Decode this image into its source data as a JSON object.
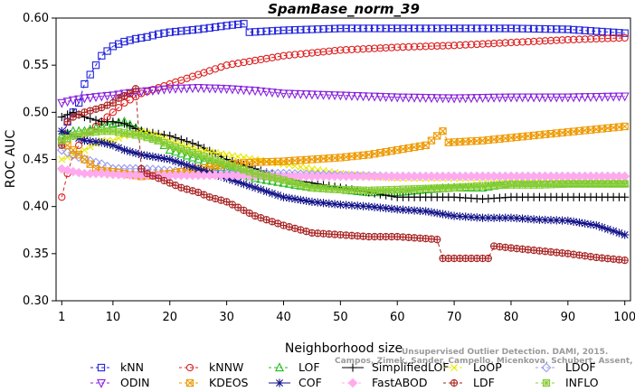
{
  "chart_data": {
    "type": "line",
    "title": "SpamBase_norm_39",
    "xlabel": "Neighborhood size",
    "ylabel": "ROC AUC",
    "xlim": [
      0,
      101
    ],
    "ylim": [
      0.3,
      0.6
    ],
    "xticks": [
      1,
      10,
      20,
      30,
      40,
      50,
      60,
      70,
      80,
      90,
      100
    ],
    "yticks": [
      0.3,
      0.35,
      0.4,
      0.45,
      0.5,
      0.55,
      0.6
    ],
    "grid": false,
    "legend_position": "bottom",
    "series": [
      {
        "name": "kNN",
        "color": "#2222dd",
        "marker": "square",
        "dash": "4,3",
        "points": [
          [
            1,
            0.47
          ],
          [
            2,
            0.49
          ],
          [
            3,
            0.5
          ],
          [
            4,
            0.51
          ],
          [
            5,
            0.53
          ],
          [
            6,
            0.54
          ],
          [
            7,
            0.55
          ],
          [
            8,
            0.56
          ],
          [
            9,
            0.565
          ],
          [
            10,
            0.57
          ],
          [
            12,
            0.575
          ],
          [
            14,
            0.578
          ],
          [
            16,
            0.58
          ],
          [
            18,
            0.583
          ],
          [
            20,
            0.585
          ],
          [
            25,
            0.588
          ],
          [
            30,
            0.592
          ],
          [
            33,
            0.594
          ],
          [
            34,
            0.585
          ],
          [
            40,
            0.587
          ],
          [
            50,
            0.589
          ],
          [
            60,
            0.589
          ],
          [
            70,
            0.589
          ],
          [
            80,
            0.589
          ],
          [
            90,
            0.588
          ],
          [
            95,
            0.586
          ],
          [
            100,
            0.584
          ]
        ]
      },
      {
        "name": "kNNW",
        "color": "#dd2222",
        "marker": "circle",
        "dash": "4,3",
        "points": [
          [
            1,
            0.41
          ],
          [
            2,
            0.435
          ],
          [
            3,
            0.455
          ],
          [
            4,
            0.465
          ],
          [
            5,
            0.475
          ],
          [
            6,
            0.48
          ],
          [
            7,
            0.485
          ],
          [
            8,
            0.49
          ],
          [
            9,
            0.495
          ],
          [
            10,
            0.5
          ],
          [
            12,
            0.51
          ],
          [
            15,
            0.52
          ],
          [
            20,
            0.53
          ],
          [
            25,
            0.54
          ],
          [
            30,
            0.55
          ],
          [
            35,
            0.555
          ],
          [
            40,
            0.56
          ],
          [
            50,
            0.566
          ],
          [
            60,
            0.569
          ],
          [
            70,
            0.571
          ],
          [
            80,
            0.574
          ],
          [
            90,
            0.577
          ],
          [
            100,
            0.579
          ]
        ]
      },
      {
        "name": "LOF",
        "color": "#22bb22",
        "marker": "triangle-up",
        "dash": "4,3",
        "points": [
          [
            1,
            0.475
          ],
          [
            3,
            0.48
          ],
          [
            5,
            0.48
          ],
          [
            8,
            0.485
          ],
          [
            10,
            0.488
          ],
          [
            12,
            0.49
          ],
          [
            15,
            0.48
          ],
          [
            18,
            0.47
          ],
          [
            20,
            0.46
          ],
          [
            25,
            0.45
          ],
          [
            30,
            0.44
          ],
          [
            35,
            0.43
          ],
          [
            40,
            0.425
          ],
          [
            45,
            0.42
          ],
          [
            50,
            0.418
          ],
          [
            55,
            0.415
          ],
          [
            60,
            0.415
          ],
          [
            65,
            0.418
          ],
          [
            70,
            0.42
          ],
          [
            75,
            0.42
          ],
          [
            80,
            0.425
          ],
          [
            90,
            0.425
          ],
          [
            100,
            0.425
          ]
        ]
      },
      {
        "name": "SimplifiedLOF",
        "color": "#000000",
        "marker": "plus",
        "dash": "",
        "points": [
          [
            1,
            0.495
          ],
          [
            3,
            0.5
          ],
          [
            5,
            0.495
          ],
          [
            8,
            0.49
          ],
          [
            10,
            0.49
          ],
          [
            12,
            0.488
          ],
          [
            15,
            0.48
          ],
          [
            20,
            0.475
          ],
          [
            25,
            0.465
          ],
          [
            30,
            0.45
          ],
          [
            35,
            0.44
          ],
          [
            40,
            0.43
          ],
          [
            45,
            0.425
          ],
          [
            50,
            0.42
          ],
          [
            55,
            0.415
          ],
          [
            60,
            0.41
          ],
          [
            65,
            0.41
          ],
          [
            70,
            0.41
          ],
          [
            75,
            0.408
          ],
          [
            80,
            0.41
          ],
          [
            90,
            0.41
          ],
          [
            100,
            0.41
          ]
        ]
      },
      {
        "name": "LoOP",
        "color": "#e8e800",
        "marker": "x",
        "dash": "4,3",
        "points": [
          [
            1,
            0.45
          ],
          [
            3,
            0.455
          ],
          [
            5,
            0.46
          ],
          [
            8,
            0.47
          ],
          [
            10,
            0.47
          ],
          [
            12,
            0.475
          ],
          [
            15,
            0.48
          ],
          [
            18,
            0.475
          ],
          [
            20,
            0.47
          ],
          [
            25,
            0.46
          ],
          [
            30,
            0.455
          ],
          [
            35,
            0.45
          ],
          [
            40,
            0.445
          ],
          [
            45,
            0.44
          ],
          [
            50,
            0.435
          ],
          [
            55,
            0.432
          ],
          [
            60,
            0.43
          ],
          [
            65,
            0.43
          ],
          [
            70,
            0.43
          ],
          [
            80,
            0.43
          ],
          [
            90,
            0.43
          ],
          [
            100,
            0.43
          ]
        ]
      },
      {
        "name": "LDOF",
        "color": "#9999ee",
        "marker": "diamond",
        "dash": "4,3",
        "points": [
          [
            1,
            0.46
          ],
          [
            3,
            0.455
          ],
          [
            5,
            0.45
          ],
          [
            8,
            0.445
          ],
          [
            10,
            0.44
          ],
          [
            12,
            0.44
          ],
          [
            15,
            0.44
          ],
          [
            20,
            0.438
          ],
          [
            25,
            0.435
          ],
          [
            30,
            0.435
          ],
          [
            40,
            0.435
          ],
          [
            50,
            0.433
          ],
          [
            60,
            0.432
          ],
          [
            70,
            0.432
          ],
          [
            80,
            0.432
          ],
          [
            90,
            0.432
          ],
          [
            100,
            0.432
          ]
        ]
      },
      {
        "name": "ODIN",
        "color": "#8822dd",
        "marker": "triangle-down",
        "dash": "4,3",
        "points": [
          [
            1,
            0.51
          ],
          [
            3,
            0.513
          ],
          [
            5,
            0.515
          ],
          [
            8,
            0.517
          ],
          [
            10,
            0.518
          ],
          [
            12,
            0.52
          ],
          [
            15,
            0.522
          ],
          [
            20,
            0.525
          ],
          [
            25,
            0.526
          ],
          [
            30,
            0.525
          ],
          [
            35,
            0.523
          ],
          [
            40,
            0.52
          ],
          [
            50,
            0.518
          ],
          [
            60,
            0.516
          ],
          [
            70,
            0.515
          ],
          [
            80,
            0.516
          ],
          [
            90,
            0.516
          ],
          [
            100,
            0.517
          ]
        ]
      },
      {
        "name": "KDEOS",
        "color": "#ee9900",
        "marker": "square-x",
        "dash": "4,3",
        "points": [
          [
            1,
            0.47
          ],
          [
            2,
            0.465
          ],
          [
            3,
            0.46
          ],
          [
            4,
            0.455
          ],
          [
            5,
            0.45
          ],
          [
            6,
            0.445
          ],
          [
            7,
            0.44
          ],
          [
            8,
            0.438
          ],
          [
            10,
            0.437
          ],
          [
            12,
            0.435
          ],
          [
            15,
            0.432
          ],
          [
            20,
            0.435
          ],
          [
            25,
            0.44
          ],
          [
            30,
            0.445
          ],
          [
            35,
            0.447
          ],
          [
            40,
            0.448
          ],
          [
            45,
            0.45
          ],
          [
            50,
            0.452
          ],
          [
            55,
            0.455
          ],
          [
            60,
            0.46
          ],
          [
            65,
            0.465
          ],
          [
            68,
            0.48
          ],
          [
            69,
            0.468
          ],
          [
            75,
            0.47
          ],
          [
            80,
            0.473
          ],
          [
            85,
            0.476
          ],
          [
            90,
            0.479
          ],
          [
            95,
            0.482
          ],
          [
            100,
            0.485
          ]
        ]
      },
      {
        "name": "COF",
        "color": "#111188",
        "marker": "asterisk",
        "dash": "",
        "points": [
          [
            1,
            0.48
          ],
          [
            3,
            0.475
          ],
          [
            5,
            0.47
          ],
          [
            8,
            0.468
          ],
          [
            10,
            0.465
          ],
          [
            12,
            0.46
          ],
          [
            15,
            0.455
          ],
          [
            20,
            0.45
          ],
          [
            25,
            0.44
          ],
          [
            30,
            0.43
          ],
          [
            35,
            0.42
          ],
          [
            40,
            0.41
          ],
          [
            45,
            0.405
          ],
          [
            50,
            0.402
          ],
          [
            55,
            0.4
          ],
          [
            60,
            0.397
          ],
          [
            65,
            0.395
          ],
          [
            70,
            0.39
          ],
          [
            75,
            0.388
          ],
          [
            80,
            0.388
          ],
          [
            85,
            0.386
          ],
          [
            90,
            0.385
          ],
          [
            95,
            0.38
          ],
          [
            100,
            0.37
          ]
        ]
      },
      {
        "name": "FastABOD",
        "color": "#ffaaee",
        "marker": "diamond-filled",
        "dash": "4,3",
        "points": [
          [
            1,
            0.44
          ],
          [
            3,
            0.437
          ],
          [
            5,
            0.435
          ],
          [
            8,
            0.435
          ],
          [
            10,
            0.434
          ],
          [
            15,
            0.433
          ],
          [
            20,
            0.433
          ],
          [
            30,
            0.433
          ],
          [
            40,
            0.432
          ],
          [
            50,
            0.432
          ],
          [
            60,
            0.432
          ],
          [
            70,
            0.432
          ],
          [
            80,
            0.432
          ],
          [
            90,
            0.432
          ],
          [
            100,
            0.432
          ]
        ]
      },
      {
        "name": "LDF",
        "color": "#aa2222",
        "marker": "circle-plus",
        "dash": "4,3",
        "points": [
          [
            1,
            0.465
          ],
          [
            2,
            0.49
          ],
          [
            3,
            0.495
          ],
          [
            5,
            0.5
          ],
          [
            8,
            0.505
          ],
          [
            10,
            0.51
          ],
          [
            11,
            0.515
          ],
          [
            13,
            0.52
          ],
          [
            14,
            0.525
          ],
          [
            15,
            0.44
          ],
          [
            16,
            0.435
          ],
          [
            18,
            0.43
          ],
          [
            20,
            0.425
          ],
          [
            22,
            0.42
          ],
          [
            25,
            0.415
          ],
          [
            27,
            0.41
          ],
          [
            30,
            0.405
          ],
          [
            35,
            0.39
          ],
          [
            40,
            0.38
          ],
          [
            45,
            0.372
          ],
          [
            50,
            0.37
          ],
          [
            55,
            0.368
          ],
          [
            60,
            0.368
          ],
          [
            65,
            0.366
          ],
          [
            67,
            0.365
          ],
          [
            68,
            0.345
          ],
          [
            75,
            0.345
          ],
          [
            76,
            0.345
          ],
          [
            77,
            0.358
          ],
          [
            80,
            0.356
          ],
          [
            85,
            0.353
          ],
          [
            90,
            0.35
          ],
          [
            95,
            0.346
          ],
          [
            100,
            0.343
          ]
        ]
      },
      {
        "name": "INFLO",
        "color": "#88cc33",
        "marker": "star-square",
        "dash": "4,3",
        "points": [
          [
            1,
            0.47
          ],
          [
            3,
            0.475
          ],
          [
            5,
            0.478
          ],
          [
            8,
            0.48
          ],
          [
            10,
            0.48
          ],
          [
            12,
            0.478
          ],
          [
            15,
            0.475
          ],
          [
            18,
            0.47
          ],
          [
            20,
            0.465
          ],
          [
            25,
            0.455
          ],
          [
            30,
            0.445
          ],
          [
            35,
            0.435
          ],
          [
            40,
            0.428
          ],
          [
            45,
            0.42
          ],
          [
            50,
            0.418
          ],
          [
            55,
            0.417
          ],
          [
            60,
            0.418
          ],
          [
            65,
            0.419
          ],
          [
            70,
            0.42
          ],
          [
            75,
            0.422
          ],
          [
            80,
            0.423
          ],
          [
            85,
            0.423
          ],
          [
            90,
            0.424
          ],
          [
            95,
            0.424
          ],
          [
            100,
            0.424
          ]
        ]
      }
    ]
  },
  "watermark": {
    "line1": "Unsupervised Outlier Detection. DAMI, 2015.",
    "line2": "Campos, Zimek, Sander, Campello, Micenkova, Schubert, Assent, Houle"
  }
}
